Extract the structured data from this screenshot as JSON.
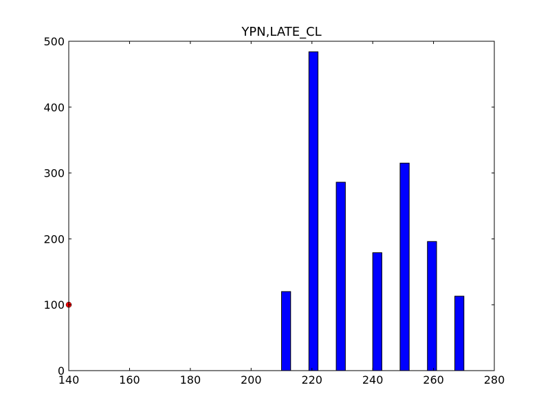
{
  "chart_data": {
    "type": "bar",
    "title": "YPN,LATE_CL",
    "xlabel": "",
    "ylabel": "",
    "xlim": [
      140,
      280
    ],
    "ylim": [
      0,
      500
    ],
    "x_ticks": [
      140,
      160,
      180,
      200,
      220,
      240,
      260,
      280
    ],
    "y_ticks": [
      0,
      100,
      200,
      300,
      400,
      500
    ],
    "bar_width": 3,
    "bars": [
      {
        "x": 210,
        "value": 120
      },
      {
        "x": 219,
        "value": 484
      },
      {
        "x": 228,
        "value": 286
      },
      {
        "x": 240,
        "value": 179
      },
      {
        "x": 249,
        "value": 315
      },
      {
        "x": 258,
        "value": 196
      },
      {
        "x": 267,
        "value": 113
      }
    ],
    "markers": [
      {
        "x": 140,
        "value": 100,
        "color": "#ff0000"
      }
    ],
    "bar_color": "#0000ff",
    "edge_color": "#000000",
    "grid": false,
    "legend": "none"
  }
}
